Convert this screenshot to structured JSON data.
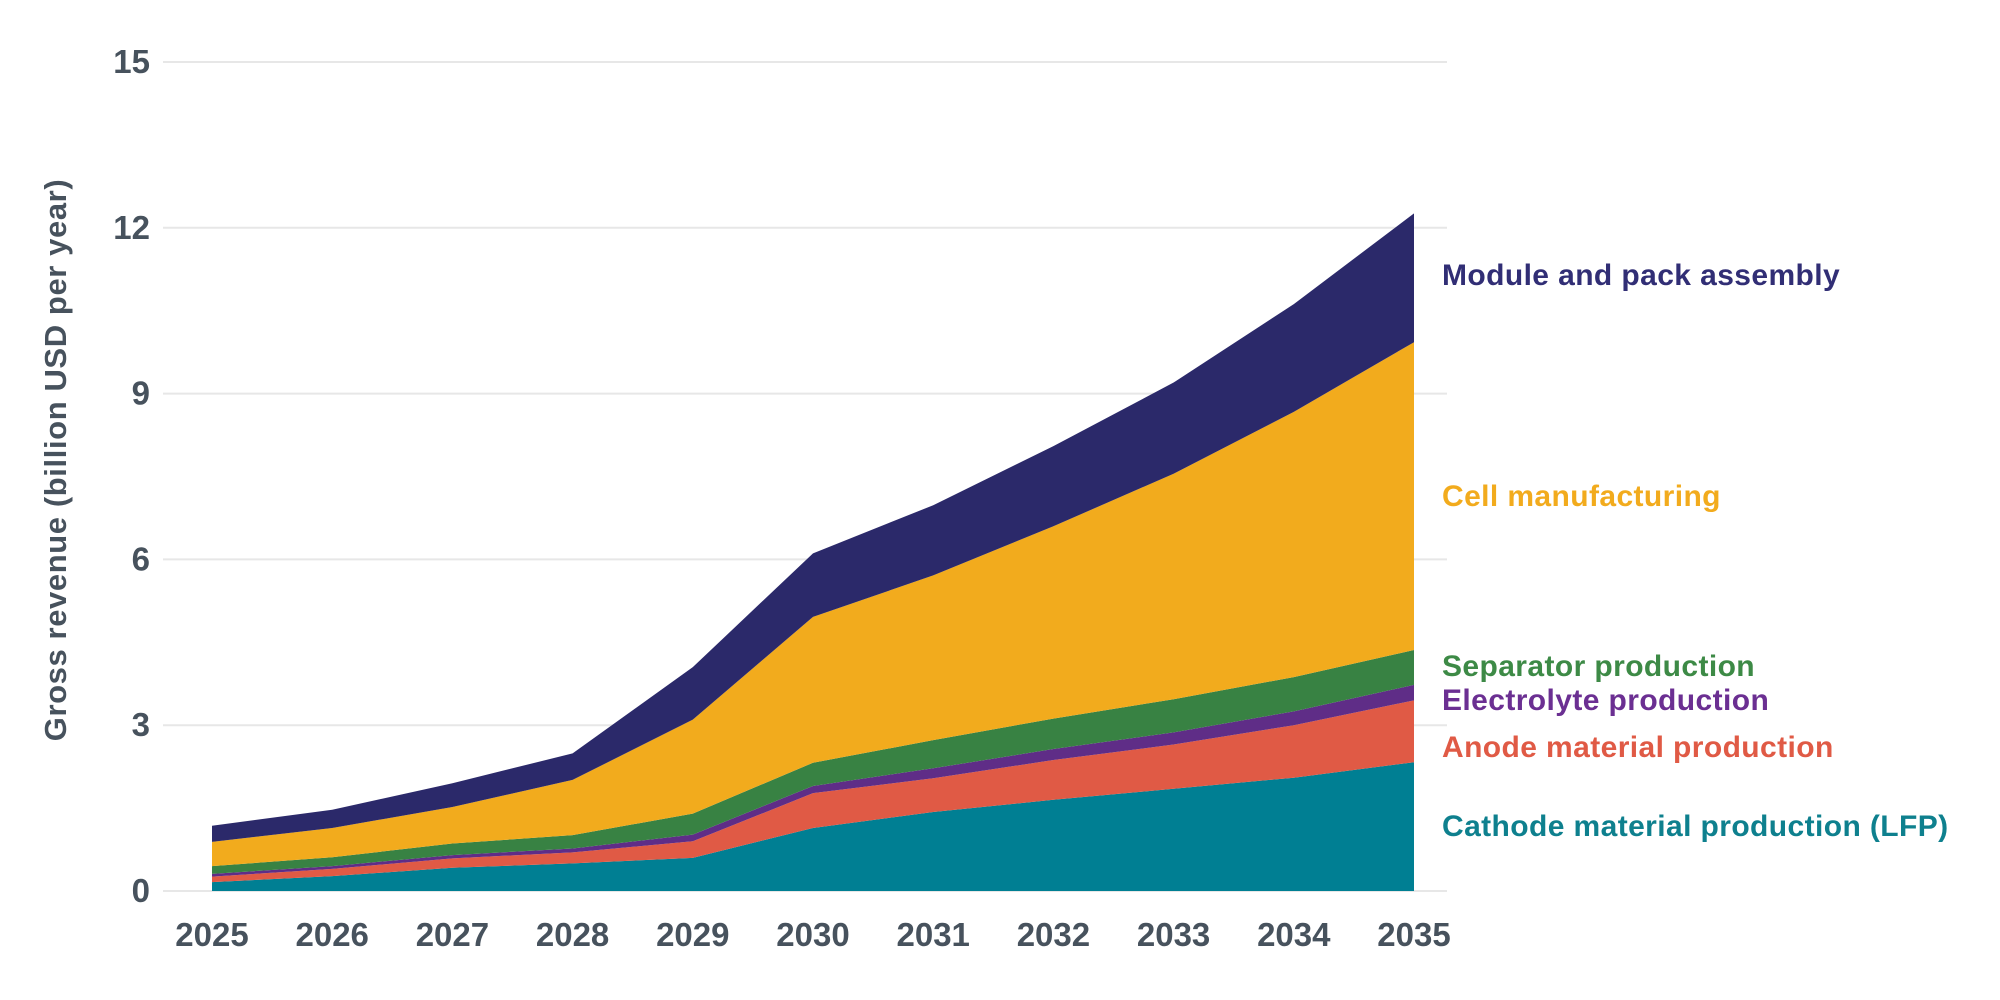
{
  "chart_data": {
    "type": "area",
    "stacked": true,
    "title": "",
    "xlabel": "",
    "ylabel": "Gross revenue (billion USD per year)",
    "x": [
      2025,
      2026,
      2027,
      2028,
      2029,
      2030,
      2031,
      2032,
      2033,
      2034,
      2035
    ],
    "ylim": [
      0,
      15
    ],
    "yticks": [
      0,
      3,
      6,
      9,
      12,
      15
    ],
    "grid": "horizontal-gridlines-only",
    "gridline_color": "#e7e7e7",
    "axis_text_color": "#47525d",
    "legend_position": "right-of-plot",
    "series": [
      {
        "name": "Cathode material production (LFP)",
        "color": "#007f93",
        "values": [
          0.16,
          0.27,
          0.42,
          0.5,
          0.6,
          1.14,
          1.43,
          1.65,
          1.85,
          2.05,
          2.33
        ]
      },
      {
        "name": "Anode material production",
        "color": "#e05a45",
        "values": [
          0.1,
          0.13,
          0.17,
          0.2,
          0.3,
          0.63,
          0.61,
          0.72,
          0.8,
          0.95,
          1.12
        ]
      },
      {
        "name": "Electrolyte production",
        "color": "#5f2d87",
        "values": [
          0.05,
          0.05,
          0.06,
          0.07,
          0.12,
          0.13,
          0.18,
          0.2,
          0.22,
          0.25,
          0.28
        ]
      },
      {
        "name": "Separator production",
        "color": "#388243",
        "values": [
          0.14,
          0.16,
          0.21,
          0.24,
          0.38,
          0.42,
          0.51,
          0.55,
          0.6,
          0.62,
          0.63
        ]
      },
      {
        "name": "Cell manufacturing",
        "color": "#f2ab1d",
        "values": [
          0.44,
          0.53,
          0.66,
          1.0,
          1.7,
          2.64,
          2.98,
          3.48,
          4.08,
          4.8,
          5.57
        ]
      },
      {
        "name": "Module and pack assembly",
        "color": "#2b296a",
        "values": [
          0.29,
          0.33,
          0.43,
          0.48,
          0.95,
          1.15,
          1.27,
          1.45,
          1.65,
          1.95,
          2.33
        ]
      }
    ],
    "totals_by_year": [
      1.18,
      1.47,
      1.95,
      2.49,
      4.05,
      6.11,
      6.98,
      8.05,
      9.2,
      10.62,
      12.26
    ]
  },
  "legend": {
    "items": [
      {
        "label": "Module and pack assembly",
        "color": "#312e75"
      },
      {
        "label": "Cell manufacturing",
        "color": "#f2ab1d"
      },
      {
        "label": "Separator production",
        "color": "#3d8a46"
      },
      {
        "label": "Electrolyte production",
        "color": "#6b2f92"
      },
      {
        "label": "Anode material production",
        "color": "#e05a45"
      },
      {
        "label": "Cathode material production (LFP)",
        "color": "#0e808e"
      }
    ]
  }
}
